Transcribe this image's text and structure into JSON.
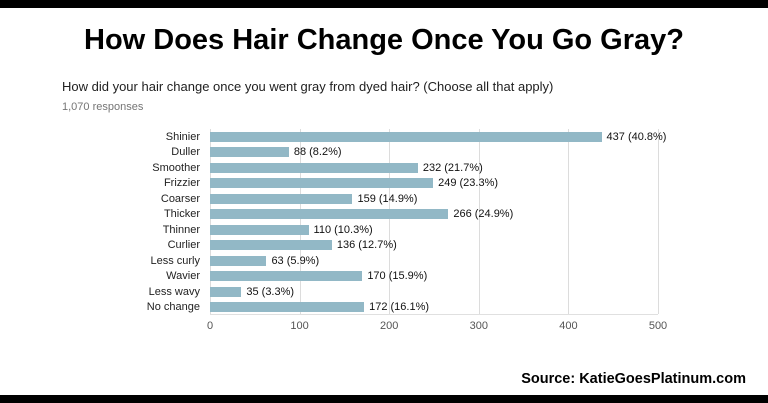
{
  "page": {
    "title": "How Does Hair Change Once You Go Gray?",
    "source": "Source: KatieGoesPlatinum.com"
  },
  "chart_data": {
    "type": "bar",
    "orientation": "horizontal",
    "title": "How did your hair change once you went gray from dyed hair? (Choose all that apply)",
    "subtitle": "1,070 responses",
    "categories": [
      "Shinier",
      "Duller",
      "Smoother",
      "Frizzier",
      "Coarser",
      "Thicker",
      "Thinner",
      "Curlier",
      "Less curly",
      "Wavier",
      "Less wavy",
      "No change"
    ],
    "values": [
      437,
      88,
      232,
      249,
      159,
      266,
      110,
      136,
      63,
      170,
      35,
      172
    ],
    "labels": [
      "437 (40.8%)",
      "88 (8.2%)",
      "232 (21.7%)",
      "249 (23.3%)",
      "159 (14.9%)",
      "266 (24.9%)",
      "110 (10.3%)",
      "136 (12.7%)",
      "63 (5.9%)",
      "170 (15.9%)",
      "35 (3.3%)",
      "172 (16.1%)"
    ],
    "xlim": [
      0,
      500
    ],
    "xticks": [
      0,
      100,
      200,
      300,
      400,
      500
    ],
    "bar_color": "#92b8c6",
    "grid": true,
    "legend": false
  }
}
